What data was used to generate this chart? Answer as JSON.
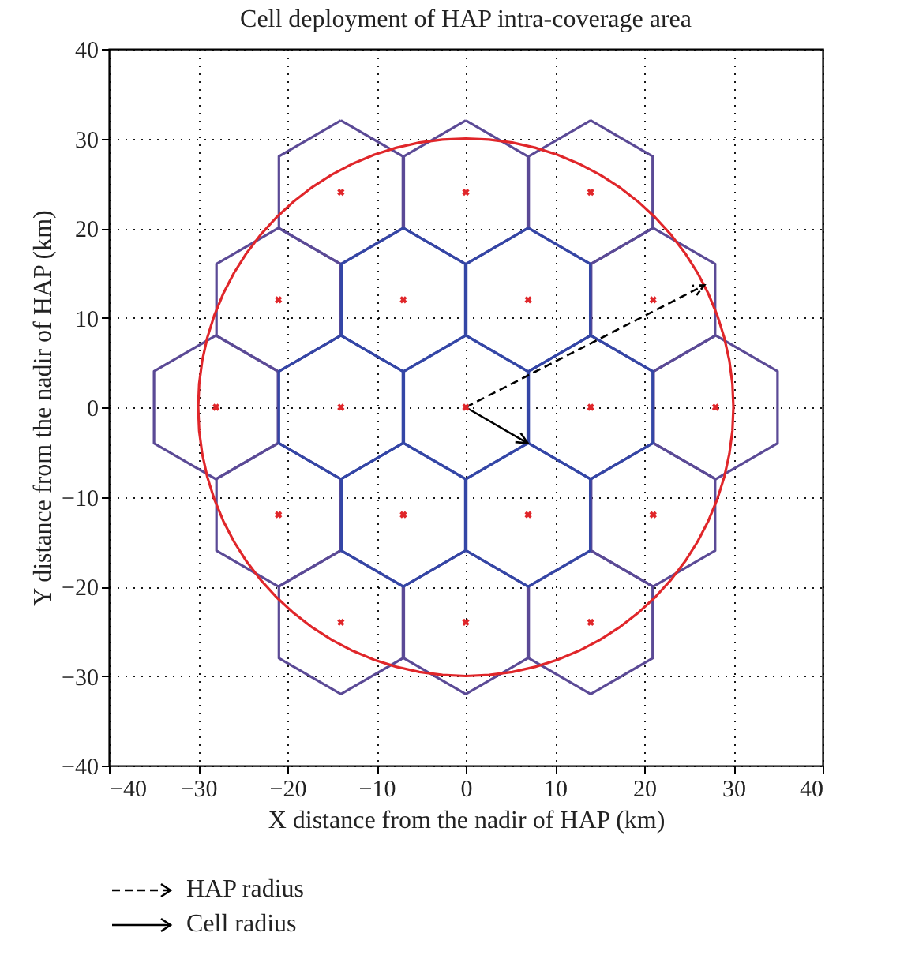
{
  "chart_data": {
    "type": "scatter",
    "title": "Cell deployment of HAP intra-coverage area",
    "xlabel": "X distance from the nadir of HAP (km)",
    "ylabel": "Y distance from the nadir of HAP (km)",
    "xlim": [
      -40,
      40
    ],
    "ylim": [
      -40,
      40
    ],
    "xticks": [
      -40,
      -30,
      -20,
      -10,
      0,
      10,
      20,
      30,
      40
    ],
    "yticks": [
      -40,
      -30,
      -20,
      -10,
      0,
      10,
      20,
      30,
      40
    ],
    "grid": true,
    "annotations": [
      "HAP radius",
      "Cell radius"
    ],
    "series": [
      {
        "color": "#e0262a",
        "marker": "cross",
        "x": [
          0,
          14,
          -14,
          7,
          -7,
          7,
          -7,
          0,
          14,
          -14,
          21,
          -21,
          28,
          -28,
          21,
          -21,
          0,
          14,
          -14
        ],
        "values": [
          0,
          0,
          0,
          12,
          12,
          -12,
          -12,
          24,
          24,
          24,
          12,
          12,
          0,
          0,
          -12,
          -12,
          -24,
          -24,
          -24
        ]
      }
    ]
  }
}
